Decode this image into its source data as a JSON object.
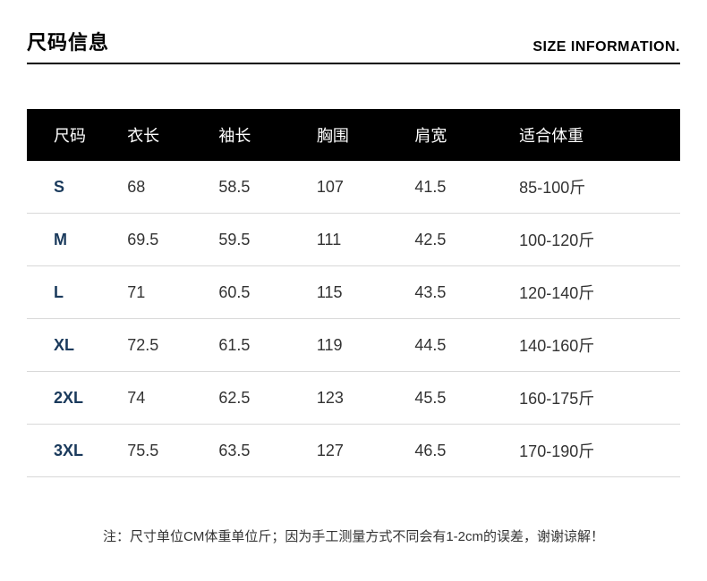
{
  "header": {
    "title_cn": "尺码信息",
    "title_en": "SIZE INFORMATION."
  },
  "table": {
    "columns": [
      "尺码",
      "衣长",
      "袖长",
      "胸围",
      "肩宽",
      "适合体重"
    ],
    "rows": [
      [
        "S",
        "68",
        "58.5",
        "107",
        "41.5",
        "85-100斤"
      ],
      [
        "M",
        "69.5",
        "59.5",
        "111",
        "42.5",
        "100-120斤"
      ],
      [
        "L",
        "71",
        "60.5",
        "115",
        "43.5",
        "120-140斤"
      ],
      [
        "XL",
        "72.5",
        "61.5",
        "119",
        "44.5",
        "140-160斤"
      ],
      [
        "2XL",
        "74",
        "62.5",
        "123",
        "45.5",
        "160-175斤"
      ],
      [
        "3XL",
        "75.5",
        "63.5",
        "127",
        "46.5",
        "170-190斤"
      ]
    ],
    "header_bg": "#000000",
    "header_text_color": "#ffffff",
    "size_col_color": "#1a3a5c",
    "cell_text_color": "#333333",
    "row_border_color": "#d8d8d8",
    "header_fontsize": 18,
    "cell_fontsize": 18
  },
  "footnote": "注：尺寸单位CM体重单位斤；因为手工测量方式不同会有1-2cm的误差，谢谢谅解！"
}
